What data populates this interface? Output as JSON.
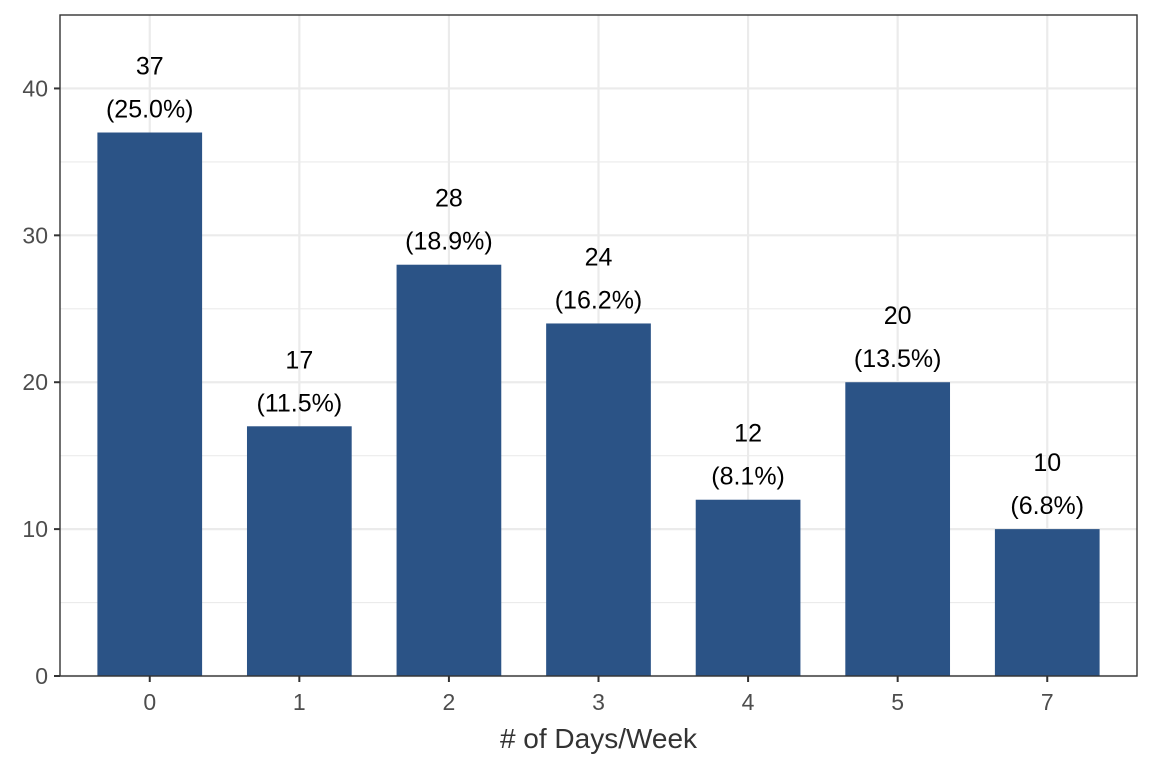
{
  "chart_data": {
    "type": "bar",
    "categories": [
      "0",
      "1",
      "2",
      "3",
      "4",
      "5",
      "7"
    ],
    "values": [
      37,
      17,
      28,
      24,
      12,
      20,
      10
    ],
    "percent_labels": [
      "(25.0%)",
      "(11.5%)",
      "(18.9%)",
      "(16.2%)",
      "(8.1%)",
      "(13.5%)",
      "(6.8%)"
    ],
    "title": "",
    "xlabel": "# of Days/Week",
    "ylabel": "",
    "ylim": [
      0,
      45
    ],
    "y_ticks": [
      0,
      10,
      20,
      30,
      40
    ],
    "grid": true,
    "legend": "none",
    "bar_color": "#2b5386"
  }
}
